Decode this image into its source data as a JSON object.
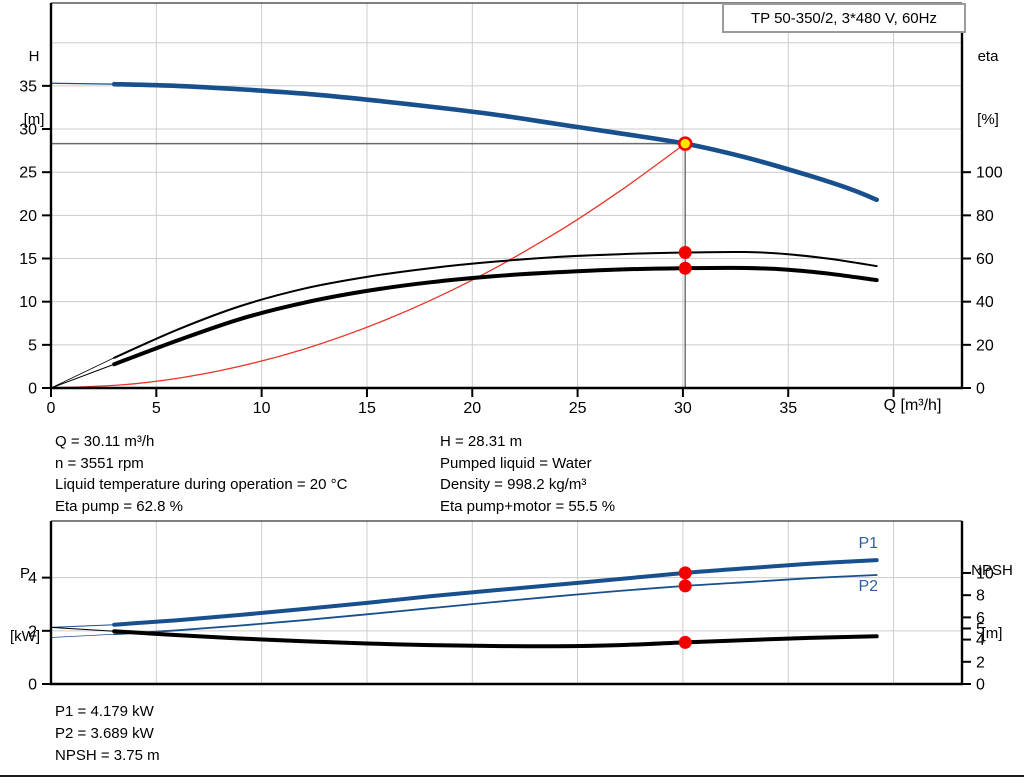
{
  "title_box": "TP 50-350/2, 3*480 V, 60Hz",
  "colors": {
    "curve_blue": "#17508c",
    "curve_black": "#000000",
    "curve_red": "#e8362a",
    "dot_red": "#f20000",
    "duty_yellow": "#ffe400",
    "grid": "#cccccc",
    "guide_gray": "#6b6b6b",
    "axis_black": "#000000",
    "series_label_blue": "#2e5fa4",
    "box_border_gray": "#9b9b9b"
  },
  "axes_labels": {
    "h": [
      "H",
      "[m]"
    ],
    "eta": [
      "eta",
      "[%]"
    ],
    "p": [
      "P",
      "[kW]"
    ],
    "npsh": [
      "NPSH",
      "[m]"
    ],
    "q": "Q [m³/h]"
  },
  "annotations": {
    "operating_left": [
      "Q = 30.11 m³/h",
      "n = 3551 rpm",
      "Liquid temperature during operation = 20 °C",
      "Eta pump = 62.8 %"
    ],
    "operating_right": [
      "H = 28.31 m",
      "Pumped liquid = Water",
      "Density = 998.2 kg/m³",
      "Eta pump+motor = 55.5 %"
    ],
    "power_block": [
      "P1 = 4.179 kW",
      "P2 = 3.689 kW",
      "NPSH = 3.75 m"
    ]
  },
  "chart_data": [
    {
      "type": "line",
      "name": "head-efficiency-chart",
      "title": "TP 50-350/2, 3*480 V, 60Hz",
      "x_axis": {
        "label": "Q [m³/h]",
        "min": 0,
        "max": 43.25,
        "grid": [
          5,
          10,
          15,
          20,
          25,
          30,
          35,
          40
        ],
        "ticks": [
          {
            "v": 0,
            "label": "0"
          },
          {
            "v": 5,
            "label": "5"
          },
          {
            "v": 10,
            "label": "10"
          },
          {
            "v": 15,
            "label": "15"
          },
          {
            "v": 20,
            "label": "20"
          },
          {
            "v": 25,
            "label": "25"
          },
          {
            "v": 30,
            "label": "30"
          },
          {
            "v": 35,
            "label": "35"
          },
          {
            "v": 40,
            "label": ""
          }
        ]
      },
      "y_left": {
        "label": "H [m]",
        "min": 0,
        "max": 44.6,
        "grid": [
          5,
          10,
          15,
          20,
          25,
          30,
          35,
          40
        ],
        "ticks": [
          {
            "v": 0,
            "label": "0"
          },
          {
            "v": 5,
            "label": "5"
          },
          {
            "v": 10,
            "label": "10"
          },
          {
            "v": 15,
            "label": "15"
          },
          {
            "v": 20,
            "label": "20"
          },
          {
            "v": 25,
            "label": "25"
          },
          {
            "v": 30,
            "label": "30"
          },
          {
            "v": 35,
            "label": "35"
          }
        ]
      },
      "y_right": {
        "label": "eta [%]",
        "min": 0,
        "max": 178.4,
        "ticks": [
          {
            "v": 0,
            "label": "0"
          },
          {
            "v": 20,
            "label": "20"
          },
          {
            "v": 40,
            "label": "40"
          },
          {
            "v": 60,
            "label": "60"
          },
          {
            "v": 80,
            "label": "80"
          },
          {
            "v": 100,
            "label": "100"
          }
        ]
      },
      "guides": {
        "h_line": {
          "value": 28.31,
          "from_q": 0,
          "to_q": 30.11
        },
        "v_line": {
          "q": 30.11,
          "from_value": 28.31,
          "to_value": 0
        }
      },
      "series": [
        {
          "name": "system-curve",
          "legend": "",
          "axis": "left",
          "color": "#e8362a",
          "width": 1.3,
          "thin_width": 1.3,
          "thin_until": 0,
          "points": [
            [
              0,
              0
            ],
            [
              4,
              0.5
            ],
            [
              8,
              2.0
            ],
            [
              12,
              4.5
            ],
            [
              16,
              8.0
            ],
            [
              20,
              12.5
            ],
            [
              24,
              18.0
            ],
            [
              27,
              22.8
            ],
            [
              30.11,
              28.31
            ]
          ]
        },
        {
          "name": "h-curve",
          "legend": "H",
          "axis": "left",
          "color": "#17508c",
          "width": 4.6,
          "thin_width": 1.2,
          "thin_until": 3,
          "points": [
            [
              0,
              35.3
            ],
            [
              3,
              35.2
            ],
            [
              6,
              35.0
            ],
            [
              9,
              34.6
            ],
            [
              12,
              34.1
            ],
            [
              15,
              33.4
            ],
            [
              18,
              32.6
            ],
            [
              21,
              31.7
            ],
            [
              24,
              30.6
            ],
            [
              27,
              29.5
            ],
            [
              30.11,
              28.31
            ],
            [
              33,
              26.7
            ],
            [
              36,
              24.6
            ],
            [
              38,
              23.0
            ],
            [
              39.2,
              21.8
            ]
          ]
        },
        {
          "name": "eta-pump-curve",
          "legend": "Eta pump",
          "axis": "right",
          "color": "#000000",
          "width": 2,
          "thin_width": 0.8,
          "thin_until": 3,
          "points": [
            [
              0,
              0
            ],
            [
              3,
              14
            ],
            [
              6,
              27
            ],
            [
              9,
              38
            ],
            [
              12,
              46
            ],
            [
              15,
              51.5
            ],
            [
              18,
              55.5
            ],
            [
              21,
              58.5
            ],
            [
              24,
              60.7
            ],
            [
              27,
              62
            ],
            [
              30.11,
              62.8
            ],
            [
              33,
              63
            ],
            [
              35,
              62
            ],
            [
              37,
              59.8
            ],
            [
              39.2,
              56.5
            ]
          ]
        },
        {
          "name": "eta-pump-motor-curve",
          "legend": "Eta pump+motor",
          "axis": "right",
          "color": "#000000",
          "width": 4,
          "thin_width": 1,
          "thin_until": 3,
          "points": [
            [
              0,
              0
            ],
            [
              3,
              11
            ],
            [
              6,
              22
            ],
            [
              9,
              32
            ],
            [
              12,
              39.5
            ],
            [
              15,
              45
            ],
            [
              18,
              49
            ],
            [
              21,
              51.8
            ],
            [
              24,
              53.6
            ],
            [
              27,
              54.9
            ],
            [
              30.11,
              55.5
            ],
            [
              33,
              55.6
            ],
            [
              35,
              54.8
            ],
            [
              37,
              52.9
            ],
            [
              39.2,
              50
            ]
          ]
        }
      ],
      "markers": [
        {
          "name": "eta-pump-dot",
          "q": 30.11,
          "value": 62.8,
          "axis": "right",
          "kind": "dot"
        },
        {
          "name": "eta-pump-motor-dot",
          "q": 30.11,
          "value": 55.5,
          "axis": "right",
          "kind": "dot"
        },
        {
          "name": "duty-point",
          "q": 30.11,
          "value": 28.31,
          "axis": "left",
          "kind": "duty"
        }
      ],
      "series_labels": []
    },
    {
      "type": "line",
      "name": "power-npsh-chart",
      "title": "",
      "x_axis": {
        "label": "",
        "min": 0,
        "max": 43.25,
        "grid": [
          5,
          10,
          15,
          20,
          25,
          30,
          35,
          40
        ],
        "ticks": []
      },
      "y_left": {
        "label": "P [kW]",
        "min": 0,
        "max": 6.13,
        "grid": [
          2,
          4
        ],
        "ticks": [
          {
            "v": 0,
            "label": "0"
          },
          {
            "v": 2,
            "label": "2"
          },
          {
            "v": 4,
            "label": "4"
          }
        ]
      },
      "y_right": {
        "label": "NPSH [m]",
        "min": 0,
        "max": 14.68,
        "ticks": [
          {
            "v": 0,
            "label": "0"
          },
          {
            "v": 2,
            "label": "2"
          },
          {
            "v": 4,
            "label": "4"
          },
          {
            "v": 5,
            "label": "5"
          },
          {
            "v": 6,
            "label": "6"
          },
          {
            "v": 8,
            "label": "8"
          },
          {
            "v": 10,
            "label": "10"
          }
        ]
      },
      "series": [
        {
          "name": "p1-curve",
          "legend": "P1",
          "axis": "left",
          "color": "#17508c",
          "width": 4,
          "thin_width": 1,
          "thin_until": 3,
          "points": [
            [
              0,
              2.13
            ],
            [
              3,
              2.23
            ],
            [
              6,
              2.4
            ],
            [
              9,
              2.6
            ],
            [
              12,
              2.82
            ],
            [
              15,
              3.05
            ],
            [
              18,
              3.3
            ],
            [
              21,
              3.52
            ],
            [
              24,
              3.73
            ],
            [
              27,
              3.95
            ],
            [
              30.11,
              4.179
            ],
            [
              33,
              4.35
            ],
            [
              36,
              4.52
            ],
            [
              39.2,
              4.66
            ]
          ]
        },
        {
          "name": "p2-curve",
          "legend": "P2",
          "axis": "left",
          "color": "#17508c",
          "width": 1.8,
          "thin_width": 0.7,
          "thin_until": 3,
          "points": [
            [
              0,
              1.75
            ],
            [
              3,
              1.87
            ],
            [
              6,
              2.02
            ],
            [
              9,
              2.2
            ],
            [
              12,
              2.4
            ],
            [
              15,
              2.62
            ],
            [
              18,
              2.85
            ],
            [
              21,
              3.08
            ],
            [
              24,
              3.3
            ],
            [
              27,
              3.5
            ],
            [
              30.11,
              3.689
            ],
            [
              33,
              3.83
            ],
            [
              36,
              3.98
            ],
            [
              39.2,
              4.1
            ]
          ]
        },
        {
          "name": "npsh-curve",
          "legend": "NPSH",
          "axis": "right",
          "color": "#000000",
          "width": 4,
          "thin_width": 1,
          "thin_until": 3,
          "points": [
            [
              0,
              5.1
            ],
            [
              3,
              4.75
            ],
            [
              6,
              4.4
            ],
            [
              9,
              4.1
            ],
            [
              12,
              3.85
            ],
            [
              15,
              3.65
            ],
            [
              18,
              3.5
            ],
            [
              21,
              3.42
            ],
            [
              24,
              3.4
            ],
            [
              27,
              3.5
            ],
            [
              30.11,
              3.75
            ],
            [
              33,
              3.95
            ],
            [
              36,
              4.15
            ],
            [
              39.2,
              4.3
            ]
          ]
        }
      ],
      "markers": [
        {
          "name": "p1-dot",
          "q": 30.11,
          "value": 4.179,
          "axis": "left",
          "kind": "dot"
        },
        {
          "name": "p2-dot",
          "q": 30.11,
          "value": 3.689,
          "axis": "left",
          "kind": "dot"
        },
        {
          "name": "npsh-dot",
          "q": 30.11,
          "value": 3.75,
          "axis": "right",
          "kind": "dot"
        }
      ],
      "series_labels": [
        {
          "text": "P1",
          "q": 38.8,
          "value": 5.12,
          "axis": "left"
        },
        {
          "text": "P2",
          "q": 38.8,
          "value": 3.5,
          "axis": "left"
        }
      ]
    }
  ]
}
